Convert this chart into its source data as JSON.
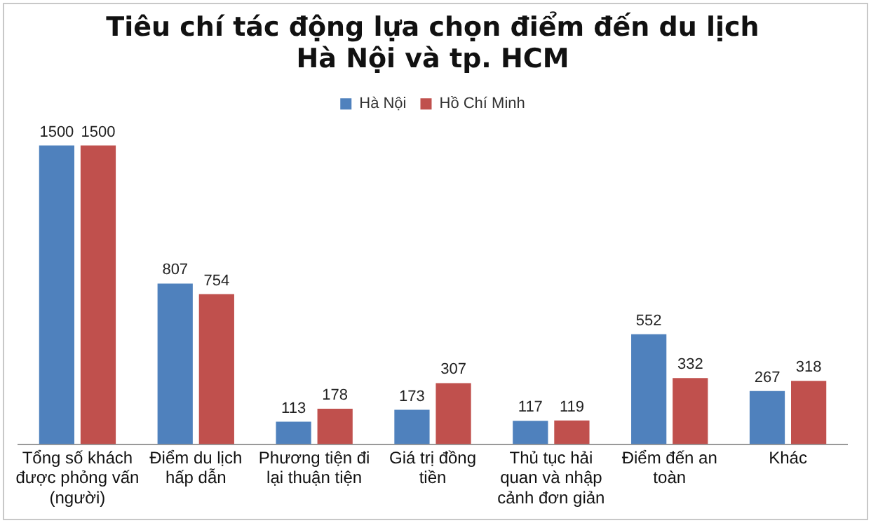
{
  "chart_data": {
    "type": "bar",
    "title": "Tiêu chí tác động lựa chọn điểm đến du lịch Hà Nội và tp. HCM",
    "categories": [
      "Tổng số khách được phỏng vấn (người)",
      "Điểm du lịch hấp dẫn",
      "Phương tiện đi lại thuận tiện",
      "Giá trị đồng tiền",
      "Thủ tục hải quan và nhập cảnh đơn giản",
      "Điểm đến an toàn",
      "Khác"
    ],
    "series": [
      {
        "name": "Hà Nội",
        "color": "#4f81bd",
        "values": [
          1500,
          807,
          113,
          173,
          117,
          552,
          267
        ]
      },
      {
        "name": "Hồ Chí Minh",
        "color": "#c0504d",
        "values": [
          1500,
          754,
          178,
          307,
          119,
          332,
          318
        ]
      }
    ],
    "data_labels": true,
    "legend": "top",
    "grid": false,
    "tick_labels": "x"
  }
}
